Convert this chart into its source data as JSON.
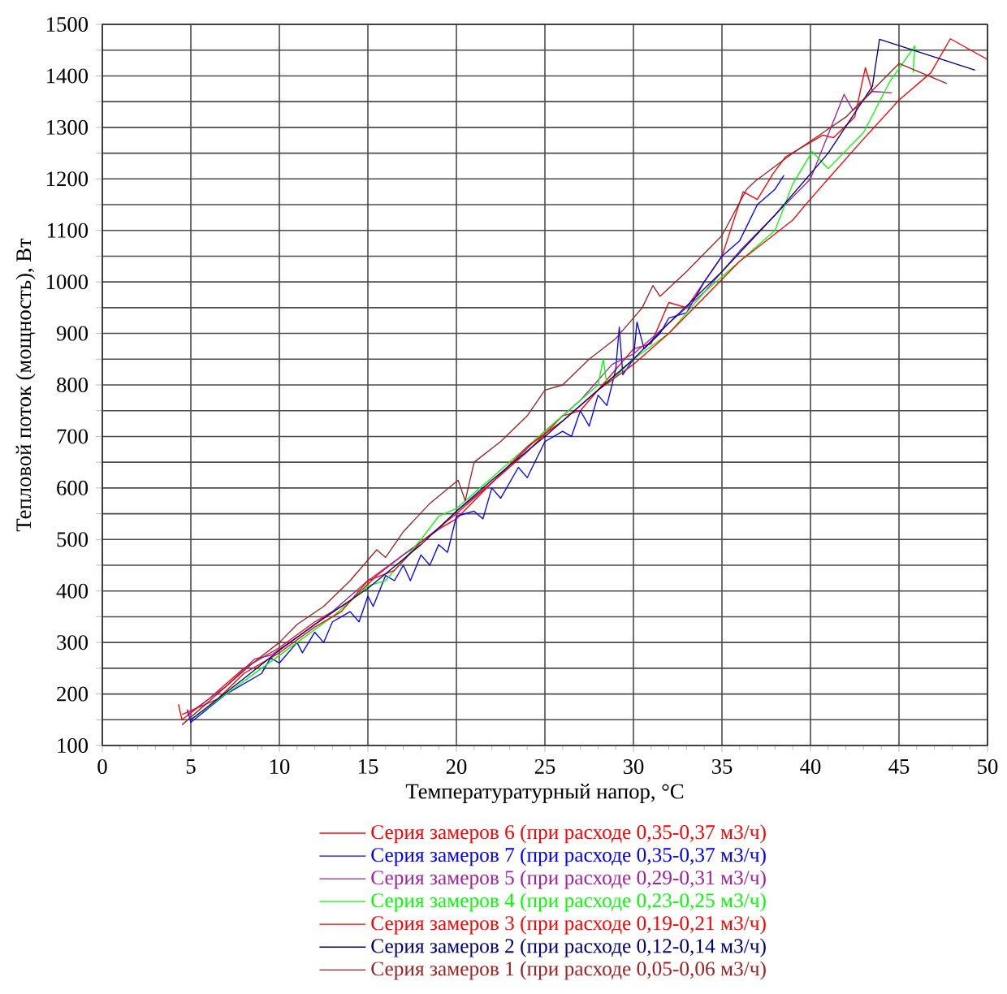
{
  "chart_data": {
    "type": "line",
    "xlabel": "Температуратурный напор, °С",
    "ylabel": "Тепловой поток (мощность), Вт",
    "xlim": [
      0,
      50
    ],
    "xticks": [
      0,
      5,
      10,
      15,
      20,
      25,
      30,
      35,
      40,
      45,
      50
    ],
    "ylim": [
      100,
      1500
    ],
    "yticks": [
      100,
      {
        "value": 150,
        "label": null
      },
      200,
      {
        "value": 250,
        "label": null
      },
      300,
      {
        "value": 350,
        "label": null
      },
      400,
      {
        "value": 450,
        "label": null
      },
      500,
      {
        "value": 550,
        "label": null
      },
      600,
      {
        "value": 650,
        "label": null
      },
      700,
      {
        "value": 750,
        "label": null
      },
      800,
      {
        "value": 850,
        "label": null
      },
      900,
      {
        "value": 950,
        "label": null
      },
      1000,
      {
        "value": 1050,
        "label": null
      },
      1100,
      {
        "value": 1150,
        "label": null
      },
      1200,
      {
        "value": 1250,
        "label": null
      },
      1300,
      {
        "value": 1350,
        "label": null
      },
      1400,
      {
        "value": 1450,
        "label": null
      },
      1500
    ],
    "grid": true,
    "legend": "bottom",
    "series": [
      {
        "name": "Серия замеров 6 (при расходе 0,35-0,37 м3/ч)",
        "color": "#ff0000",
        "x": [
          4.3,
          4.5,
          6,
          8,
          10,
          12,
          14,
          15.5,
          17,
          19,
          20,
          22,
          24,
          26,
          27,
          29,
          30,
          31,
          32,
          33,
          34,
          35,
          36.2,
          37,
          37.9,
          38.6,
          40.7,
          41.3,
          42.5,
          43.1,
          43.5
        ],
        "values": [
          180,
          150,
          190,
          250,
          290,
          340,
          380,
          430,
          470,
          520,
          540,
          610,
          670,
          740,
          750,
          830,
          870,
          880,
          960,
          950,
          1000,
          1050,
          1175,
          1160,
          1211,
          1243,
          1285,
          1280,
          1320,
          1416,
          1370
        ]
      },
      {
        "name": "Серия замеров 7 (при расходе 0,35-0,37 м3/ч)",
        "color": "#0000ff",
        "x": [
          4.8,
          5,
          7,
          9,
          9.5,
          10,
          11,
          11.3,
          12,
          12.5,
          13,
          14,
          14.5,
          15,
          15.3,
          16,
          16.5,
          17,
          17.4,
          18,
          18.5,
          19,
          19.5,
          20,
          21,
          21.5,
          22,
          22.5,
          23.5,
          24,
          25,
          26,
          26.5,
          27,
          27.5,
          28,
          28.5,
          29,
          29.2,
          29.4,
          30,
          30.2,
          30.6,
          31.5,
          32,
          33,
          34,
          35,
          36,
          37,
          38,
          38.5
        ],
        "values": [
          170,
          145,
          200,
          240,
          270,
          260,
          300,
          280,
          320,
          300,
          340,
          360,
          340,
          390,
          370,
          430,
          420,
          450,
          420,
          470,
          450,
          490,
          475,
          545,
          555,
          540,
          600,
          580,
          640,
          620,
          690,
          710,
          700,
          750,
          720,
          780,
          760,
          830,
          912,
          820,
          850,
          922,
          870,
          900,
          930,
          940,
          1000,
          1050,
          1080,
          1150,
          1180,
          1207
        ]
      },
      {
        "name": "Серия замеров 5 (при расходе 0,29-0,31 м3/ч)",
        "color": "#a020a0",
        "x": [
          4.8,
          7,
          8.6,
          9.5,
          11,
          13,
          15,
          17,
          19,
          20,
          22,
          25,
          27,
          28.8,
          30,
          32,
          34,
          36,
          38,
          40,
          41.9,
          42.4,
          43.5,
          44.6
        ],
        "values": [
          160,
          215,
          268,
          275,
          310,
          360,
          420,
          470,
          520,
          555,
          610,
          710,
          770,
          840,
          860,
          920,
          980,
          1060,
          1130,
          1200,
          1364,
          1333,
          1370,
          1367
        ]
      },
      {
        "name": "Серия замеров 4 (при расходе 0,23-0,25 м3/ч)",
        "color": "#00ff00",
        "x": [
          5,
          7,
          9,
          11,
          13,
          15,
          16,
          18,
          19,
          20,
          22,
          24,
          26,
          28,
          28.3,
          28.5,
          30,
          32,
          34,
          36,
          38,
          39,
          40.1,
          41,
          43,
          44.5,
          45.9,
          45.8
        ],
        "values": [
          150,
          200,
          250,
          300,
          350,
          410,
          420,
          500,
          545,
          560,
          620,
          680,
          740,
          800,
          850,
          800,
          850,
          900,
          980,
          1040,
          1100,
          1190,
          1253,
          1220,
          1290,
          1390,
          1458,
          1406
        ]
      },
      {
        "name": "Серия замеров 3 (при расходе 0,19-0,21 м3/ч)",
        "color": "#ff0000",
        "x": [
          4.5,
          6.5,
          8,
          10,
          12,
          13.5,
          15,
          16.5,
          18,
          20,
          22,
          24,
          26,
          28,
          30,
          32,
          34,
          36,
          37.5,
          39,
          39.8,
          41,
          42.8,
          45,
          46.8,
          47.9,
          50
        ],
        "values": [
          160,
          190,
          240,
          280,
          330,
          360,
          420,
          440,
          495,
          550,
          610,
          680,
          730,
          790,
          840,
          900,
          970,
          1040,
          1080,
          1120,
          1153,
          1200,
          1270,
          1353,
          1406,
          1472,
          1432
        ]
      },
      {
        "name": "Серия замеров 2 (при расходе 0,12-0,14 м3/ч)",
        "color": "#000080",
        "x": [
          5,
          8,
          10,
          12,
          15,
          18,
          20,
          22,
          25,
          28,
          30,
          32,
          35,
          38,
          41,
          43.5,
          43.9,
          49.3
        ],
        "values": [
          150,
          230,
          285,
          335,
          405,
          490,
          555,
          615,
          700,
          790,
          850,
          920,
          1020,
          1130,
          1250,
          1380,
          1471,
          1411
        ]
      },
      {
        "name": "Серия замеров 1 (при расходе 0,05-0,06 м3/ч)",
        "color": "#a02020",
        "x": [
          4.5,
          5,
          7,
          8.5,
          10,
          11,
          12.5,
          14,
          15.5,
          16,
          17,
          18.5,
          20.1,
          20.5,
          21,
          22.5,
          24,
          25,
          26,
          27.5,
          29,
          30.5,
          31.1,
          31.5,
          33,
          35,
          36.4,
          36.9,
          39,
          42,
          45,
          47.7
        ],
        "values": [
          140,
          155,
          215,
          260,
          300,
          335,
          370,
          420,
          480,
          465,
          515,
          570,
          615,
          575,
          650,
          690,
          740,
          790,
          800,
          850,
          890,
          950,
          993,
          972,
          1020,
          1090,
          1180,
          1196,
          1250,
          1320,
          1424,
          1385
        ]
      }
    ]
  }
}
